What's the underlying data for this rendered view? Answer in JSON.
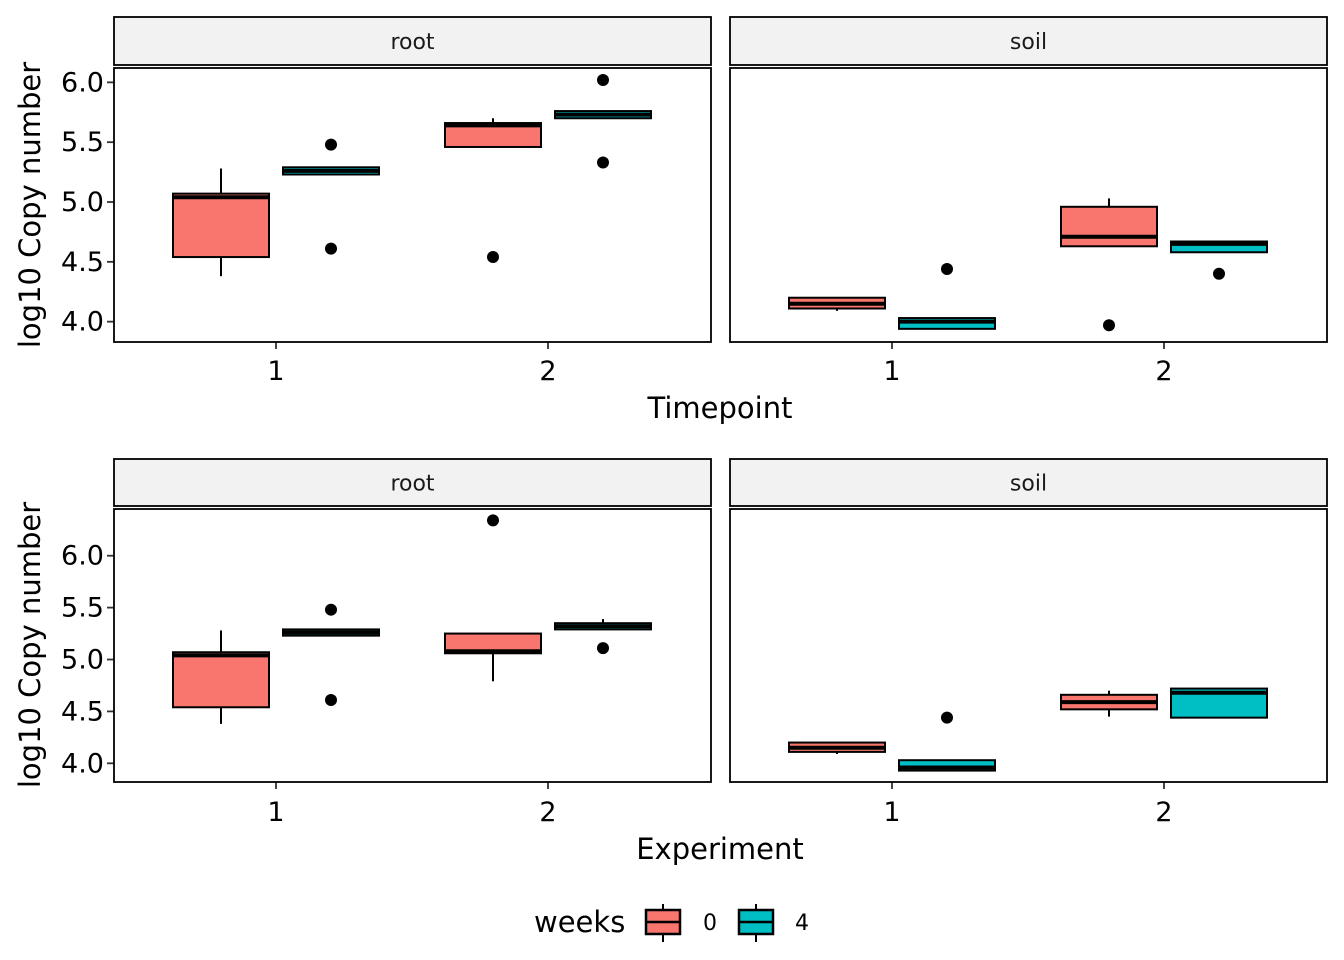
{
  "colors": {
    "weeks_0": "#F8766D",
    "weeks_4": "#00BFC4",
    "strip_bg": "#F2F2F2",
    "frame": "#000000"
  },
  "legend": {
    "title": "weeks",
    "entries": [
      "0",
      "4"
    ]
  },
  "chart_data": [
    {
      "type": "box",
      "xlabel": "Timepoint",
      "ylabel": "log10 Copy number",
      "categories": [
        "1",
        "2"
      ],
      "ylim": [
        3.83,
        6.12
      ],
      "yticks": [
        "4.0",
        "4.5",
        "5.0",
        "5.5",
        "6.0"
      ],
      "facets": [
        {
          "label": "root",
          "boxes": [
            {
              "category": "1",
              "weeks": "0",
              "q1": 4.54,
              "median": 5.04,
              "q3": 5.07,
              "whisker_low": 4.38,
              "whisker_high": 5.28,
              "outliers": []
            },
            {
              "category": "1",
              "weeks": "4",
              "q1": 5.23,
              "median": 5.26,
              "q3": 5.29,
              "whisker_low": 5.23,
              "whisker_high": 5.29,
              "outliers": [
                5.48,
                4.61
              ]
            },
            {
              "category": "2",
              "weeks": "0",
              "q1": 5.46,
              "median": 5.64,
              "q3": 5.66,
              "whisker_low": 5.46,
              "whisker_high": 5.7,
              "outliers": [
                4.54
              ]
            },
            {
              "category": "2",
              "weeks": "4",
              "q1": 5.7,
              "median": 5.73,
              "q3": 5.76,
              "whisker_low": 5.7,
              "whisker_high": 5.76,
              "outliers": [
                6.02,
                5.33
              ]
            }
          ]
        },
        {
          "label": "soil",
          "boxes": [
            {
              "category": "1",
              "weeks": "0",
              "q1": 4.11,
              "median": 4.15,
              "q3": 4.2,
              "whisker_low": 4.09,
              "whisker_high": 4.2,
              "outliers": []
            },
            {
              "category": "1",
              "weeks": "4",
              "q1": 3.94,
              "median": 4.0,
              "q3": 4.03,
              "whisker_low": 3.94,
              "whisker_high": 4.03,
              "outliers": [
                4.44
              ]
            },
            {
              "category": "2",
              "weeks": "0",
              "q1": 4.63,
              "median": 4.71,
              "q3": 4.96,
              "whisker_low": 4.63,
              "whisker_high": 5.03,
              "outliers": [
                3.97
              ]
            },
            {
              "category": "2",
              "weeks": "4",
              "q1": 4.58,
              "median": 4.65,
              "q3": 4.67,
              "whisker_low": 4.58,
              "whisker_high": 4.67,
              "outliers": [
                4.4
              ]
            }
          ]
        }
      ]
    },
    {
      "type": "box",
      "xlabel": "Experiment",
      "ylabel": "log10 Copy number",
      "categories": [
        "1",
        "2"
      ],
      "ylim": [
        3.82,
        6.45
      ],
      "yticks": [
        "4.0",
        "4.5",
        "5.0",
        "5.5",
        "6.0"
      ],
      "facets": [
        {
          "label": "root",
          "boxes": [
            {
              "category": "1",
              "weeks": "0",
              "q1": 4.54,
              "median": 5.04,
              "q3": 5.07,
              "whisker_low": 4.38,
              "whisker_high": 5.28,
              "outliers": []
            },
            {
              "category": "1",
              "weeks": "4",
              "q1": 5.23,
              "median": 5.26,
              "q3": 5.29,
              "whisker_low": 5.23,
              "whisker_high": 5.29,
              "outliers": [
                5.48,
                4.61
              ]
            },
            {
              "category": "2",
              "weeks": "0",
              "q1": 5.06,
              "median": 5.08,
              "q3": 5.25,
              "whisker_low": 4.79,
              "whisker_high": 5.25,
              "outliers": [
                6.34
              ]
            },
            {
              "category": "2",
              "weeks": "4",
              "q1": 5.29,
              "median": 5.32,
              "q3": 5.35,
              "whisker_low": 5.29,
              "whisker_high": 5.39,
              "outliers": [
                5.11
              ]
            }
          ]
        },
        {
          "label": "soil",
          "boxes": [
            {
              "category": "1",
              "weeks": "0",
              "q1": 4.11,
              "median": 4.15,
              "q3": 4.2,
              "whisker_low": 4.09,
              "whisker_high": 4.2,
              "outliers": []
            },
            {
              "category": "1",
              "weeks": "4",
              "q1": 3.93,
              "median": 3.96,
              "q3": 4.03,
              "whisker_low": 3.93,
              "whisker_high": 4.03,
              "outliers": [
                4.44
              ]
            },
            {
              "category": "2",
              "weeks": "0",
              "q1": 4.52,
              "median": 4.59,
              "q3": 4.66,
              "whisker_low": 4.45,
              "whisker_high": 4.7,
              "outliers": []
            },
            {
              "category": "2",
              "weeks": "4",
              "q1": 4.44,
              "median": 4.68,
              "q3": 4.72,
              "whisker_low": 4.44,
              "whisker_high": 4.72,
              "outliers": []
            }
          ]
        }
      ]
    }
  ]
}
